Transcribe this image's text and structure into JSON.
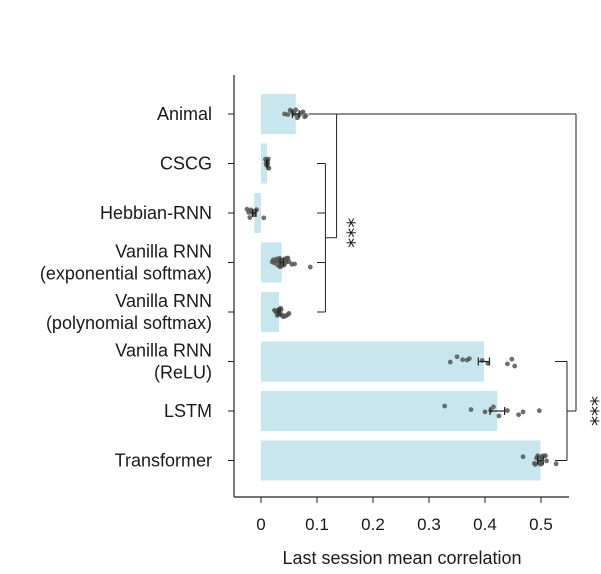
{
  "chart_data": {
    "type": "bar",
    "orientation": "horizontal",
    "title": "",
    "xlabel": "Last session mean correlation",
    "ylabel": "",
    "xlim": [
      -0.05,
      0.55
    ],
    "xticks": [
      0,
      0.1,
      0.2,
      0.3,
      0.4,
      0.5
    ],
    "xtick_labels": [
      "0",
      "0.1",
      "0.2",
      "0.3",
      "0.4",
      "0.5"
    ],
    "colors": {
      "bar": "#c8e6ee",
      "point": "#555555",
      "axis": "#222222"
    },
    "categories": [
      {
        "lines": [
          "Animal"
        ],
        "value": 0.062,
        "err": 0.006,
        "points": [
          0.042,
          0.048,
          0.052,
          0.055,
          0.058,
          0.06,
          0.062,
          0.065,
          0.068,
          0.072,
          0.075,
          0.078,
          0.08
        ]
      },
      {
        "lines": [
          "CSCG"
        ],
        "value": 0.011,
        "err": 0.001,
        "points": [
          0.008,
          0.009,
          0.01,
          0.01,
          0.011,
          0.011,
          0.012,
          0.012,
          0.013,
          0.013,
          0.014
        ]
      },
      {
        "lines": [
          "Hebbian-RNN"
        ],
        "value": -0.012,
        "err": 0.003,
        "points": [
          -0.025,
          -0.022,
          -0.02,
          -0.018,
          -0.016,
          -0.014,
          -0.012,
          -0.01,
          -0.008,
          0.005
        ]
      },
      {
        "lines": [
          "Vanilla RNN",
          "(exponential softmax)"
        ],
        "value": 0.037,
        "err": 0.003,
        "points": [
          0.02,
          0.022,
          0.024,
          0.026,
          0.028,
          0.03,
          0.031,
          0.032,
          0.033,
          0.034,
          0.035,
          0.036,
          0.037,
          0.038,
          0.039,
          0.04,
          0.041,
          0.042,
          0.043,
          0.044,
          0.045,
          0.046,
          0.048,
          0.05,
          0.055,
          0.06,
          0.088
        ]
      },
      {
        "lines": [
          "Vanilla RNN",
          "(polynomial softmax)"
        ],
        "value": 0.032,
        "err": 0.002,
        "points": [
          0.024,
          0.026,
          0.027,
          0.028,
          0.029,
          0.03,
          0.031,
          0.032,
          0.033,
          0.034,
          0.035,
          0.036,
          0.037,
          0.038,
          0.04,
          0.042,
          0.045,
          0.048,
          0.05
        ]
      },
      {
        "lines": [
          "Vanilla RNN",
          "(ReLU)"
        ],
        "value": 0.398,
        "err": 0.01,
        "points": [
          0.338,
          0.35,
          0.36,
          0.368,
          0.372,
          0.395,
          0.405,
          0.44,
          0.448,
          0.453
        ]
      },
      {
        "lines": [
          "LSTM"
        ],
        "value": 0.422,
        "err": 0.013,
        "points": [
          0.328,
          0.375,
          0.4,
          0.41,
          0.415,
          0.425,
          0.44,
          0.46,
          0.468,
          0.497
        ]
      },
      {
        "lines": [
          "Transformer"
        ],
        "value": 0.499,
        "err": 0.005,
        "points": [
          0.468,
          0.488,
          0.49,
          0.492,
          0.494,
          0.495,
          0.496,
          0.497,
          0.498,
          0.499,
          0.5,
          0.501,
          0.502,
          0.503,
          0.505,
          0.508,
          0.51,
          0.527
        ]
      }
    ],
    "brackets": [
      {
        "from": 0,
        "to_range": [
          1,
          4
        ],
        "label": "***",
        "side": "left"
      },
      {
        "from": 0,
        "to_range": [
          5,
          7
        ],
        "label": "***",
        "side": "right"
      }
    ]
  }
}
